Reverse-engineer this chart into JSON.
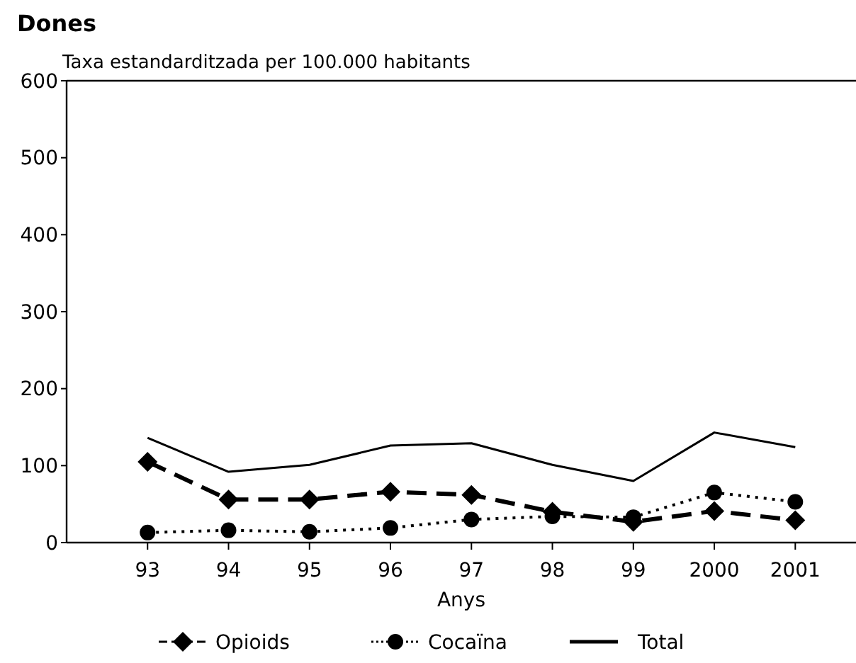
{
  "chart_data": {
    "type": "line",
    "title": "Dones",
    "ylabel": "Taxa estandarditzada per 100.000 habitants",
    "xlabel": "Anys",
    "categories": [
      "93",
      "94",
      "95",
      "96",
      "97",
      "98",
      "99",
      "2000",
      "2001"
    ],
    "ylim": [
      0,
      600
    ],
    "yticks": [
      0,
      100,
      200,
      300,
      400,
      500,
      600
    ],
    "grid": false,
    "legend": "bottom",
    "series": [
      {
        "name": "Opioids",
        "color": "#000000",
        "values": [
          105,
          56,
          56,
          66,
          62,
          40,
          27,
          41,
          29
        ],
        "marker": "diamond",
        "line_style": "dashed"
      },
      {
        "name": "Cocaïna",
        "color": "#000000",
        "values": [
          13,
          16,
          14,
          19,
          30,
          34,
          33,
          65,
          53
        ],
        "marker": "circle",
        "line_style": "dotted"
      },
      {
        "name": "Total",
        "color": "#000000",
        "values": [
          136,
          92,
          101,
          126,
          129,
          101,
          80,
          143,
          124
        ],
        "marker": "none",
        "line_style": "solid"
      }
    ]
  }
}
